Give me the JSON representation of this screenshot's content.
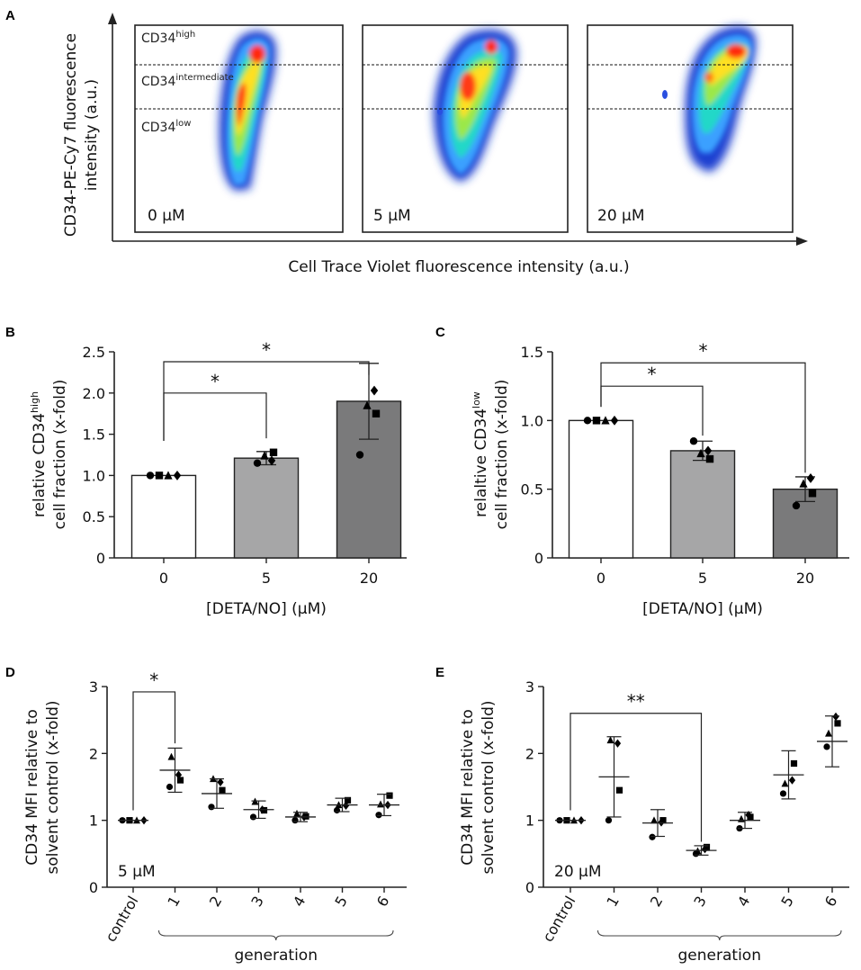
{
  "chart_data": [
    {
      "panel": "A",
      "type": "scatter",
      "subtype": "flow-cytometry density plot",
      "xlabel": "Cell Trace Violet fluorescence intensity (a.u.)",
      "ylabel_line1": "CD34-PE-Cy7 fluorescence",
      "ylabel_line2": "intensity (a.u.)",
      "gate_main": [
        "CD34",
        "CD34",
        "CD34"
      ],
      "gate_sup": [
        "high",
        "intermediate",
        "low"
      ],
      "conditions": [
        "0 μM",
        "5 μM",
        "20 μM"
      ]
    },
    {
      "panel": "B",
      "type": "bar",
      "categories": [
        "0",
        "5",
        "20"
      ],
      "values": [
        1.0,
        1.21,
        1.9
      ],
      "sd": [
        0.0,
        0.08,
        0.46
      ],
      "colors": [
        "#ffffff",
        "#a6a6a7",
        "#7a7a7b"
      ],
      "points": [
        [
          1.0,
          1.0,
          1.0,
          1.0
        ],
        [
          1.15,
          1.28,
          1.24,
          1.18
        ],
        [
          1.25,
          1.75,
          1.85,
          2.03
        ]
      ],
      "markers": [
        "circle",
        "square",
        "triangle",
        "diamond"
      ],
      "ylim": [
        0,
        2.5
      ],
      "yticks": [
        "0",
        "0.5",
        "1.0",
        "1.5",
        "2.0",
        "2.5"
      ],
      "xlabel": "[DETA/NO] (μM)",
      "ylabel_line1": "relative CD34",
      "ylabel_sup": "high",
      "ylabel_line2": "cell fraction (x-fold)",
      "significance": [
        {
          "from": "0",
          "to": "5",
          "label": "*"
        },
        {
          "from": "0",
          "to": "20",
          "label": "*"
        }
      ]
    },
    {
      "panel": "C",
      "type": "bar",
      "categories": [
        "0",
        "5",
        "20"
      ],
      "values": [
        1.0,
        0.78,
        0.5
      ],
      "sd": [
        0.0,
        0.07,
        0.09
      ],
      "colors": [
        "#ffffff",
        "#a6a6a7",
        "#7a7a7b"
      ],
      "points": [
        [
          1.0,
          1.0,
          1.0,
          1.0
        ],
        [
          0.85,
          0.72,
          0.76,
          0.78
        ],
        [
          0.38,
          0.47,
          0.54,
          0.58
        ]
      ],
      "markers": [
        "circle",
        "square",
        "triangle",
        "diamond"
      ],
      "ylim": [
        0,
        1.5
      ],
      "yticks": [
        "0",
        "0.5",
        "1.0",
        "1.5"
      ],
      "xlabel": "[DETA/NO] (μM)",
      "ylabel_line1": "relaltive CD34",
      "ylabel_sup": "low",
      "ylabel_line2": "cell fraction (x-fold)",
      "significance": [
        {
          "from": "0",
          "to": "5",
          "label": "*"
        },
        {
          "from": "0",
          "to": "20",
          "label": "*"
        }
      ]
    },
    {
      "panel": "D",
      "type": "scatter",
      "condition": "5 μM",
      "categories": [
        "control",
        "1",
        "2",
        "3",
        "4",
        "5",
        "6"
      ],
      "means": [
        1.0,
        1.75,
        1.4,
        1.16,
        1.05,
        1.23,
        1.23
      ],
      "sd": [
        0.0,
        0.33,
        0.22,
        0.13,
        0.07,
        0.1,
        0.16
      ],
      "points": [
        [
          1.0,
          1.0,
          1.0,
          1.0
        ],
        [
          1.5,
          1.6,
          1.95,
          1.68
        ],
        [
          1.2,
          1.45,
          1.62,
          1.57
        ],
        [
          1.05,
          1.15,
          1.28,
          1.16
        ],
        [
          1.0,
          1.06,
          1.1,
          1.05
        ],
        [
          1.15,
          1.3,
          1.23,
          1.22
        ],
        [
          1.08,
          1.37,
          1.24,
          1.23
        ]
      ],
      "markers": [
        "circle",
        "square",
        "triangle",
        "diamond"
      ],
      "ylim": [
        0,
        3
      ],
      "yticks": [
        "0",
        "1",
        "2",
        "3"
      ],
      "xlabel": "generation",
      "ylabel_line1": "CD34 MFI relative to",
      "ylabel_line2": "solvent control (x-fold)",
      "significance": [
        {
          "from": "control",
          "to": "1",
          "label": "*"
        }
      ]
    },
    {
      "panel": "E",
      "type": "scatter",
      "condition": "20 μM",
      "categories": [
        "control",
        "1",
        "2",
        "3",
        "4",
        "5",
        "6"
      ],
      "means": [
        1.0,
        1.65,
        0.96,
        0.55,
        1.0,
        1.68,
        2.18
      ],
      "sd": [
        0.0,
        0.6,
        0.2,
        0.07,
        0.12,
        0.36,
        0.38
      ],
      "points": [
        [
          1.0,
          1.0,
          1.0,
          1.0
        ],
        [
          1.0,
          1.45,
          2.2,
          2.15
        ],
        [
          0.75,
          1.0,
          1.0,
          0.97
        ],
        [
          0.5,
          0.6,
          0.54,
          0.57
        ],
        [
          0.88,
          1.05,
          1.02,
          1.08
        ],
        [
          1.4,
          1.85,
          1.55,
          1.6
        ],
        [
          2.1,
          2.45,
          2.3,
          2.55
        ]
      ],
      "markers": [
        "circle",
        "square",
        "triangle",
        "diamond"
      ],
      "ylim": [
        0,
        3
      ],
      "yticks": [
        "0",
        "1",
        "2",
        "3"
      ],
      "xlabel": "generation",
      "ylabel_line1": "CD34 MFI relative to",
      "ylabel_line2": "solvent control (x-fold)",
      "significance": [
        {
          "from": "control",
          "to": "3",
          "label": "**"
        }
      ]
    }
  ],
  "panel_letters": [
    "A",
    "B",
    "C",
    "D",
    "E"
  ]
}
